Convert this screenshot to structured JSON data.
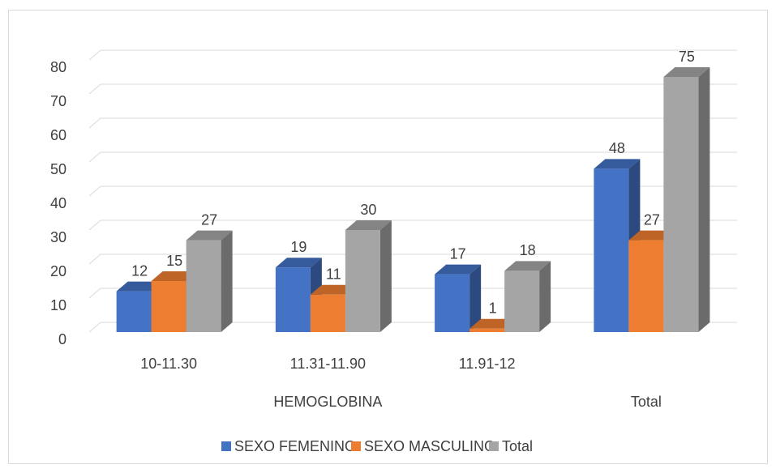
{
  "chart_data": {
    "type": "bar3d",
    "categories": [
      "10-11.30",
      "11.31-11.90",
      "11.91-12",
      null
    ],
    "groups": [
      "HEMOGLOBINA",
      "HEMOGLOBINA",
      "HEMOGLOBINA",
      "Total"
    ],
    "series": [
      {
        "name": "SEXO FEMENINO",
        "color": "#4472c4",
        "values": [
          12,
          19,
          17,
          48
        ]
      },
      {
        "name": "SEXO MASCULINO",
        "color": "#ed7d31",
        "values": [
          15,
          11,
          1,
          27
        ]
      },
      {
        "name": "Total",
        "color": "#a5a5a5",
        "values": [
          27,
          30,
          18,
          75
        ]
      }
    ],
    "ylim": [
      0,
      80
    ],
    "yticks": [
      0,
      10,
      20,
      30,
      40,
      50,
      60,
      70,
      80
    ],
    "grid": true,
    "legend": "bottom"
  }
}
